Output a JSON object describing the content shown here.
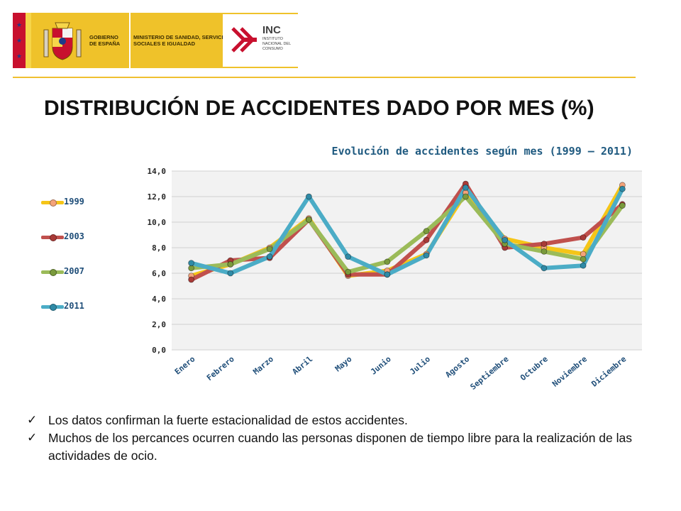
{
  "header": {
    "gov_label": "GOBIERNO DE ESPAÑA",
    "ministry_label": "MINISTERIO DE SANIDAD, SERVICIOS SOCIALES E IGUALDAD",
    "inc_title": "INC",
    "inc_subtitle": "INSTITUTO NACIONAL DEL CONSUMO",
    "crest_icon": "spain-coat-of-arms-icon",
    "inc_logo_icon": "inc-logo-icon",
    "colors": {
      "band": "#efc22a",
      "red": "#c8102e",
      "rule": "#f0c030"
    }
  },
  "page_title": "DISTRIBUCIÓN DE ACCIDENTES DADO POR MES (%)",
  "chart_data": {
    "type": "line",
    "title": "Evolución de accidentes según mes (1999 – 2011)",
    "categories": [
      "Enero",
      "Febrero",
      "Marzo",
      "Abril",
      "Mayo",
      "Junio",
      "Julio",
      "Agosto",
      "Septiembre",
      "Octubre",
      "Noviembre",
      "Diciembre"
    ],
    "ylim": [
      0,
      14
    ],
    "yticks": [
      "0,0",
      "2,0",
      "4,0",
      "6,0",
      "8,0",
      "10,0",
      "12,0",
      "14,0"
    ],
    "grid": true,
    "legend_position": "left",
    "series": [
      {
        "name": "1999",
        "color": "#f5c518",
        "marker": "#f4a37a",
        "values": [
          5.8,
          6.7,
          8.0,
          10.3,
          5.8,
          6.2,
          7.5,
          12.3,
          8.7,
          8.0,
          7.5,
          12.9
        ]
      },
      {
        "name": "2003",
        "color": "#c0504d",
        "marker": "#a93a37",
        "values": [
          5.5,
          7.0,
          7.2,
          10.2,
          5.9,
          5.9,
          8.6,
          13.0,
          8.0,
          8.3,
          8.8,
          11.4
        ]
      },
      {
        "name": "2007",
        "color": "#9bbb59",
        "marker": "#7a9a3c",
        "values": [
          6.4,
          6.7,
          7.9,
          10.2,
          6.1,
          6.9,
          9.3,
          12.0,
          8.3,
          7.7,
          7.1,
          11.3
        ]
      },
      {
        "name": "2011",
        "color": "#4bacc6",
        "marker": "#2f8aa6",
        "values": [
          6.8,
          6.0,
          7.3,
          12.0,
          7.3,
          5.9,
          7.4,
          12.7,
          8.6,
          6.4,
          6.6,
          12.6
        ]
      }
    ]
  },
  "bullets": [
    "Los datos  confirman la fuerte estacionalidad de estos accidentes.",
    "Muchos de los percances ocurren cuando las personas disponen de tiempo libre para la realización de las actividades de ocio."
  ],
  "bullet_icon": "checkmark-icon"
}
